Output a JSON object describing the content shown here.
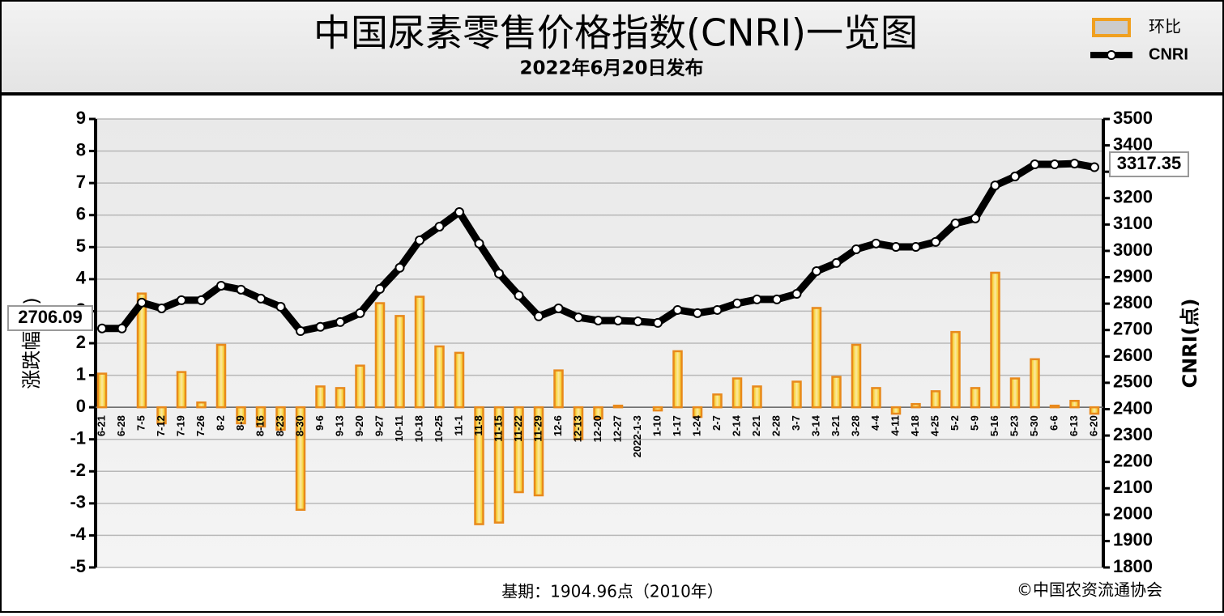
{
  "chart_data": {
    "type": "bar-line",
    "title": "中国尿素零售价格指数(CNRI)一览图",
    "subtitle": "2022年6月20日发布",
    "y_label": "涨跌幅(%)",
    "y2_label": "CNRI(点)",
    "footnote": "基期：1904.96点（2010年）",
    "source": "©中国农资流通协会",
    "categories": [
      "6-21",
      "6-28",
      "7-5",
      "7-12",
      "7-19",
      "7-26",
      "8-2",
      "8-9",
      "8-16",
      "8-23",
      "8-30",
      "9-6",
      "9-13",
      "9-20",
      "9-27",
      "10-11",
      "10-18",
      "10-25",
      "11-1",
      "11-8",
      "11-15",
      "11-22",
      "11-29",
      "12-6",
      "12-13",
      "12-20",
      "12-27",
      "2022-1-3",
      "1-10",
      "1-17",
      "1-24",
      "2-7",
      "2-14",
      "2-21",
      "2-28",
      "3-7",
      "3-14",
      "3-21",
      "3-28",
      "4-4",
      "4-11",
      "4-18",
      "4-25",
      "5-2",
      "5-9",
      "5-16",
      "5-23",
      "5-30",
      "6-6",
      "6-13",
      "6-20"
    ],
    "series": [
      {
        "name": "环比",
        "color": "#e8891c",
        "values": [
          1.05,
          0,
          3.55,
          -0.5,
          1.1,
          0.15,
          1.95,
          -0.5,
          -0.6,
          -0.7,
          -3.2,
          0.65,
          0.6,
          1.3,
          3.25,
          2.85,
          3.45,
          1.9,
          1.7,
          -3.65,
          -3.6,
          -2.65,
          -2.75,
          1.15,
          -1.0,
          -0.35,
          0.05,
          0,
          -0.1,
          1.75,
          -0.3,
          0.4,
          0.9,
          0.65,
          0,
          0.8,
          3.1,
          0.95,
          1.95,
          0.6,
          -0.2,
          0.1,
          0.5,
          2.35,
          0.6,
          4.2,
          0.9,
          1.5,
          0.05,
          0.2,
          -0.2
        ]
      },
      {
        "name": "CNRI",
        "color": "#000000",
        "axis": "y2",
        "values": [
          2706.09,
          2706,
          2804,
          2782,
          2813,
          2813,
          2868,
          2853,
          2819,
          2788,
          2696,
          2712,
          2730,
          2764,
          2856,
          2936,
          3040,
          3092,
          3147,
          3028,
          2914,
          2831,
          2752,
          2782,
          2748,
          2736,
          2736,
          2733,
          2727,
          2776,
          2764,
          2776,
          2801,
          2816,
          2816,
          2837,
          2923,
          2954,
          3006,
          3028,
          3015,
          3015,
          3034,
          3104,
          3123,
          3248,
          3282,
          3328,
          3328,
          3331,
          3317.35
        ]
      }
    ],
    "ylim": [
      -5,
      9
    ],
    "yticks": [
      -5,
      -4,
      -3,
      -2,
      -1,
      0,
      1,
      2,
      3,
      4,
      5,
      6,
      7,
      8,
      9
    ],
    "y2lim": [
      1800,
      3500
    ],
    "y2ticks": [
      1800,
      1900,
      2000,
      2100,
      2200,
      2300,
      2400,
      2500,
      2600,
      2700,
      2800,
      2900,
      3000,
      3100,
      3200,
      3300,
      3400,
      3500
    ],
    "grid": true,
    "legend": "upper right"
  }
}
